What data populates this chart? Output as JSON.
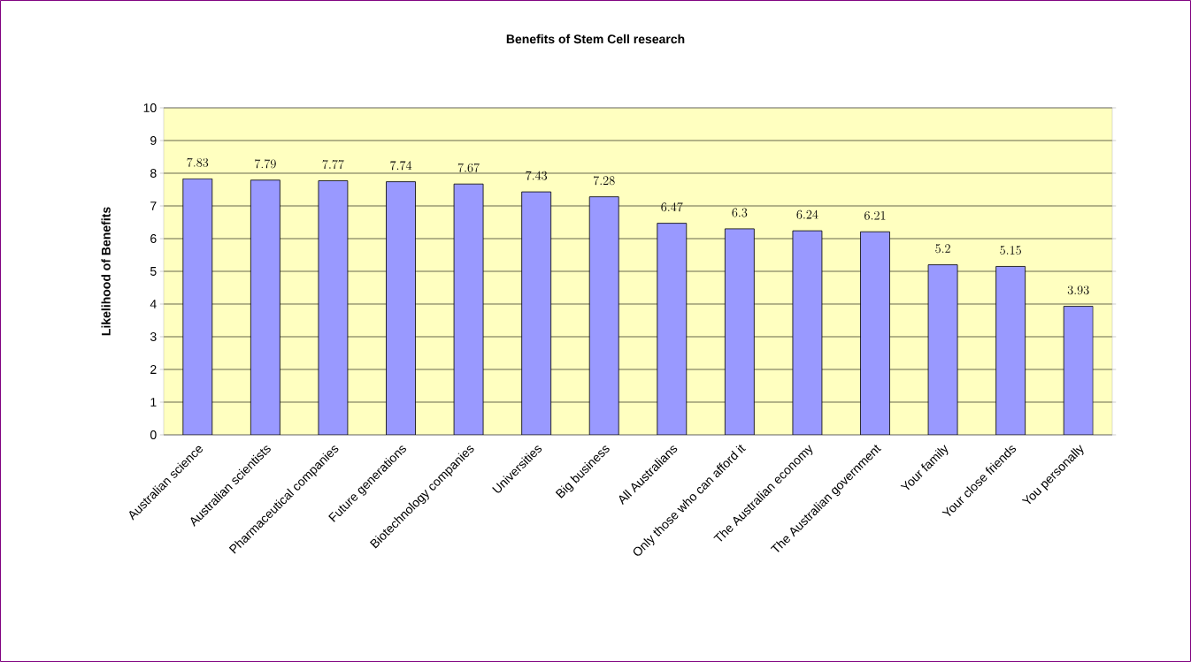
{
  "chart_data": {
    "type": "bar",
    "title": "Benefits of Stem Cell research",
    "ylabel": "Likelihood of Benefits",
    "categories": [
      "Australian science",
      "Australian scientists",
      "Pharmaceutical companies",
      "Future generations",
      "Biotechnology companies",
      "Universities",
      "Big business",
      "All Australians",
      "Only those who can afford it",
      "The Australian economy",
      "The Australian government",
      "Your family",
      "Your close friends",
      "You personally"
    ],
    "values": [
      7.83,
      7.79,
      7.77,
      7.74,
      7.67,
      7.43,
      7.28,
      6.47,
      6.3,
      6.24,
      6.21,
      5.2,
      5.15,
      3.93
    ],
    "color": "#9999ff",
    "ylim": [
      0,
      10
    ],
    "yticks": [
      0,
      1,
      2,
      3,
      4,
      5,
      6,
      7,
      8,
      9,
      10
    ],
    "grid": "y",
    "data_labels": true
  }
}
